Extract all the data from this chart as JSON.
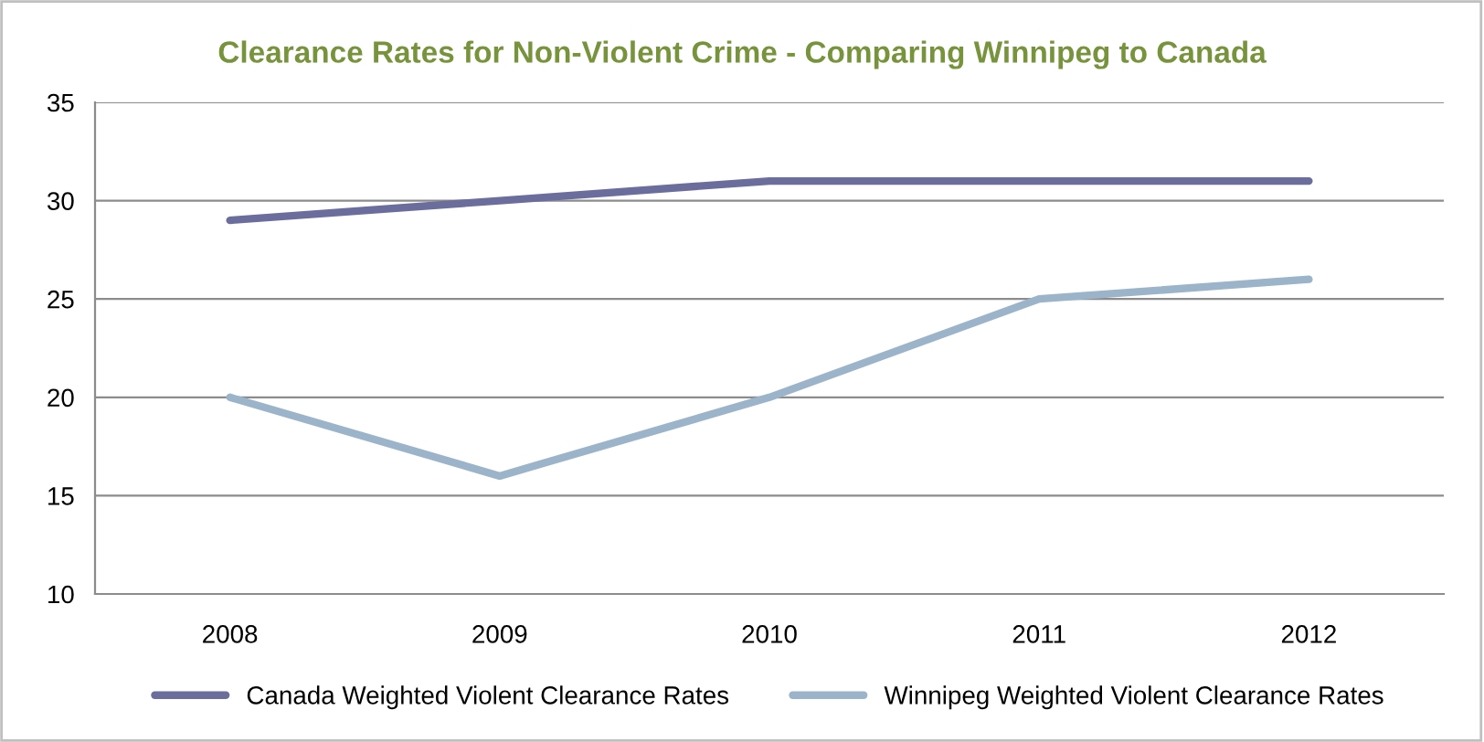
{
  "chart_data": {
    "type": "line",
    "title": "Clearance Rates for Non-Violent Crime - Comparing Winnipeg to Canada",
    "categories": [
      "2008",
      "2009",
      "2010",
      "2011",
      "2012"
    ],
    "series": [
      {
        "name": "Canada Weighted Violent Clearance Rates",
        "color": "#6b6e9c",
        "values": [
          29,
          30,
          31,
          31,
          31
        ]
      },
      {
        "name": "Winnipeg Weighted Violent Clearance Rates",
        "color": "#9bb4c9",
        "values": [
          20,
          16,
          20,
          25,
          26
        ]
      }
    ],
    "ylim": [
      10,
      35
    ],
    "yticks": [
      10,
      15,
      20,
      25,
      30,
      35
    ],
    "grid": "y",
    "legend": "bottom",
    "marker": "none",
    "line_style": "solid"
  }
}
